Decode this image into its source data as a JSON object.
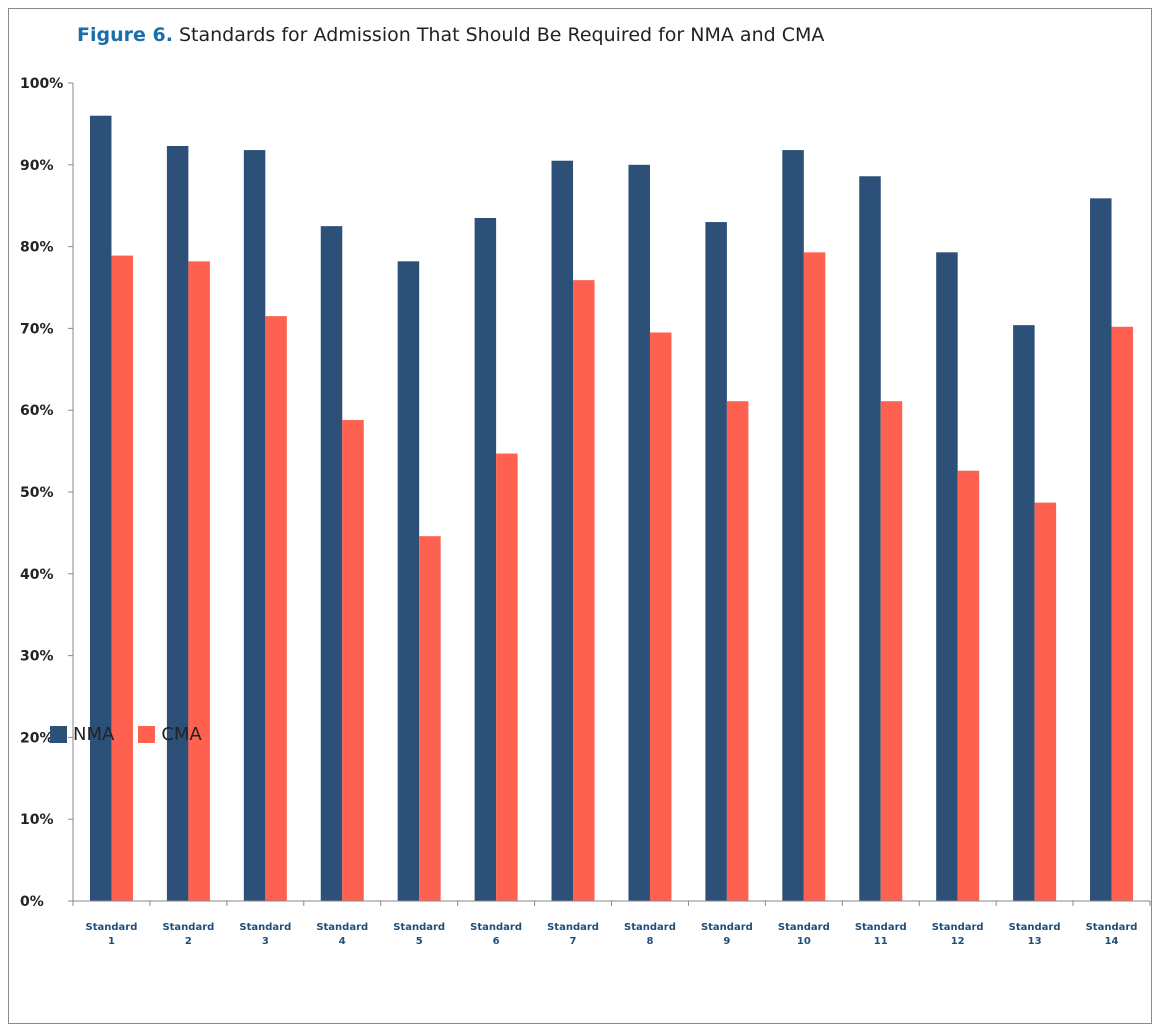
{
  "title": {
    "figure_label": "Figure 6.",
    "text": "Standards for Admission That Should Be Required for NMA and CMA"
  },
  "colors": {
    "NMA": "#2d5079",
    "CMA": "#ff6150",
    "figure_label": "#1a6fa8",
    "tick_label": "#1f4e79"
  },
  "chart_data": {
    "type": "bar",
    "title": "Standards for Admission That Should Be Required for NMA and CMA",
    "categories": [
      [
        "Standard",
        "1"
      ],
      [
        "Standard",
        "2"
      ],
      [
        "Standard",
        "3"
      ],
      [
        "Standard",
        "4"
      ],
      [
        "Standard",
        "5"
      ],
      [
        "Standard",
        "6"
      ],
      [
        "Standard",
        "7"
      ],
      [
        "Standard",
        "8"
      ],
      [
        "Standard",
        "9"
      ],
      [
        "Standard",
        "10"
      ],
      [
        "Standard",
        "11"
      ],
      [
        "Standard",
        "12"
      ],
      [
        "Standard",
        "13"
      ],
      [
        "Standard",
        "14"
      ]
    ],
    "series": [
      {
        "name": "NMA",
        "values": [
          96,
          92.3,
          91.8,
          82.5,
          78.2,
          83.5,
          90.5,
          90,
          83,
          91.8,
          88.6,
          79.3,
          70.4,
          85.9
        ]
      },
      {
        "name": "CMA",
        "values": [
          78.9,
          78.2,
          71.5,
          58.8,
          44.6,
          54.7,
          75.9,
          69.5,
          61.1,
          79.3,
          61.1,
          52.6,
          48.7,
          70.2
        ]
      }
    ],
    "ylim": [
      0,
      100
    ],
    "yticks": [
      "0%",
      "10%",
      "20%",
      "30%",
      "40%",
      "50%",
      "60%",
      "70%",
      "80%",
      "90%",
      "100%"
    ],
    "grid": false,
    "legend": "bottom-left"
  }
}
